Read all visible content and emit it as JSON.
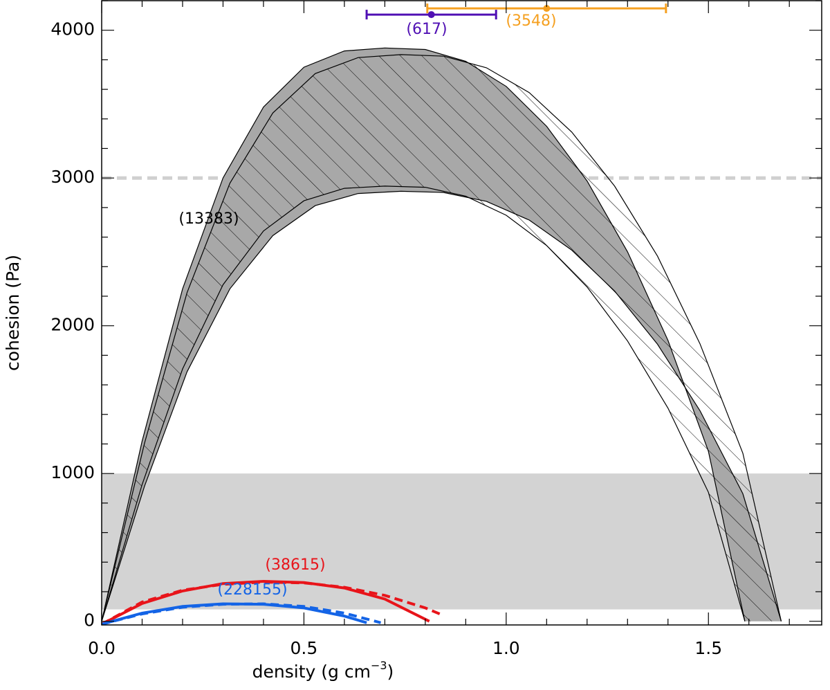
{
  "chart_data": {
    "type": "line",
    "xlabel": [
      "density (g cm",
      "−3",
      ")"
    ],
    "ylabel": "cohesion (Pa)",
    "xlim": [
      0,
      1.78
    ],
    "ylim": [
      -25,
      4200
    ],
    "xticks": [
      {
        "value": 0,
        "label": "0.0"
      },
      {
        "value": 0.5,
        "label": "0.5"
      },
      {
        "value": 1,
        "label": "1.0"
      },
      {
        "value": 1.5,
        "label": "1.5"
      }
    ],
    "yticks": [
      0,
      1000,
      2000,
      3000,
      4000
    ],
    "xminor": [
      0.1,
      0.2,
      0.3,
      0.4,
      0.6,
      0.7,
      0.8,
      0.9,
      1.1,
      1.2,
      1.3,
      1.4,
      1.6,
      1.7
    ],
    "yminor": [
      200,
      400,
      600,
      800,
      1200,
      1400,
      1600,
      1800,
      2200,
      2400,
      2600,
      2800,
      3200,
      3400,
      3600,
      3800,
      4200
    ],
    "hspan": [
      80,
      1000
    ],
    "hspan_color": "#d3d3d3",
    "hline": {
      "y": 3000,
      "color": "#d0d0d0"
    },
    "series": [
      {
        "color": "#000000",
        "x": [
          0,
          0.1,
          0.2,
          0.3,
          0.4,
          0.5,
          0.6,
          0.7,
          0.8,
          0.9,
          1.0,
          1.1,
          1.2,
          1.3,
          1.4,
          1.5,
          1.59
        ],
        "values": [
          0,
          1220,
          2250,
          3000,
          3480,
          3750,
          3860,
          3880,
          3870,
          3790,
          3620,
          3350,
          2980,
          2500,
          1900,
          1150,
          0
        ]
      },
      {
        "color": "#000000",
        "x": [
          0,
          0.106,
          0.211,
          0.317,
          0.423,
          0.528,
          0.634,
          0.74,
          0.845,
          0.951,
          1.057,
          1.162,
          1.268,
          1.374,
          1.479,
          1.585,
          1.68
        ],
        "values": [
          0,
          1206,
          2224,
          2965,
          3440,
          3707,
          3815,
          3835,
          3825,
          3746,
          3578,
          3311,
          2945,
          2471,
          1878,
          1137,
          0
        ]
      },
      {
        "color": "#000000",
        "x": [
          0,
          0.1,
          0.2,
          0.3,
          0.4,
          0.5,
          0.6,
          0.7,
          0.8,
          0.9,
          1.0,
          1.1,
          1.2,
          1.3,
          1.4,
          1.5,
          1.59
        ],
        "values": [
          0,
          926,
          1708,
          2277,
          2641,
          2846,
          2930,
          2945,
          2937,
          2877,
          2748,
          2543,
          2262,
          1897,
          1442,
          873,
          0
        ]
      },
      {
        "color": "#000000",
        "x": [
          0,
          0.106,
          0.211,
          0.317,
          0.423,
          0.528,
          0.634,
          0.74,
          0.845,
          0.951,
          1.057,
          1.162,
          1.268,
          1.374,
          1.479,
          1.585,
          1.68
        ],
        "values": [
          0,
          915,
          1688,
          2250,
          2610,
          2813,
          2895,
          2910,
          2902,
          2842,
          2715,
          2512,
          2235,
          1875,
          1425,
          863,
          0
        ]
      },
      {
        "color": "#e8141a",
        "style": "solid",
        "x": [
          0,
          0.1,
          0.2,
          0.3,
          0.4,
          0.5,
          0.6,
          0.7,
          0.81
        ],
        "values": [
          -20,
          120,
          205,
          255,
          270,
          262,
          225,
          150,
          0
        ]
      },
      {
        "color": "#e8141a",
        "style": "dashed",
        "x": [
          0,
          0.1,
          0.2,
          0.3,
          0.4,
          0.5,
          0.6,
          0.7,
          0.8,
          0.84
        ],
        "values": [
          -20,
          130,
          210,
          250,
          265,
          260,
          230,
          175,
          90,
          45
        ]
      },
      {
        "color": "#1464e6",
        "style": "solid",
        "x": [
          0,
          0.1,
          0.2,
          0.3,
          0.4,
          0.5,
          0.6,
          0.655
        ],
        "values": [
          -20,
          55,
          100,
          118,
          115,
          90,
          35,
          -10
        ]
      },
      {
        "color": "#1464e6",
        "style": "dashed",
        "x": [
          0,
          0.1,
          0.2,
          0.3,
          0.4,
          0.5,
          0.6,
          0.69
        ],
        "values": [
          -20,
          50,
          95,
          115,
          118,
          100,
          55,
          -10
        ]
      }
    ],
    "fills": [
      {
        "type": "solid",
        "color": "#a8a8a8",
        "between": [
          0,
          3
        ]
      },
      {
        "type": "hatch",
        "between": [
          1,
          2
        ]
      }
    ],
    "errorbars": [
      {
        "x": 0.815,
        "y": 4106,
        "xerr": 0.16,
        "color": "#5010b4",
        "label": "(617)"
      },
      {
        "x": 1.1,
        "y": 4148,
        "xerr": 0.295,
        "color": "#f5a020",
        "label": "(3548)"
      }
    ],
    "annotations": [
      {
        "text": "(13383)",
        "color": "#000000"
      },
      {
        "text": "(38615)",
        "color": "#e8141a"
      },
      {
        "text": "(228155)",
        "color": "#1464e6"
      }
    ]
  }
}
